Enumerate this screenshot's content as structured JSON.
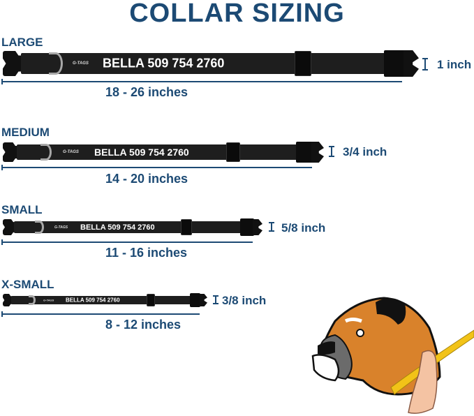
{
  "title": "COLLAR SIZING",
  "brand_tag": "G-TAGS",
  "sizes": [
    {
      "label": "LARGE",
      "name_text": "BELLA 509 754 2760",
      "range": "18 - 26 inches",
      "width": "1 inch"
    },
    {
      "label": "MEDIUM",
      "name_text": "BELLA 509 754 2760",
      "range": "14 - 20 inches",
      "width": "3/4 inch"
    },
    {
      "label": "SMALL",
      "name_text": "BELLA 509 754 2760",
      "range": "11 - 16 inches",
      "width": "5/8 inch"
    },
    {
      "label": "X-SMALL",
      "name_text": "BELLA 509 754 2760",
      "range": "8 - 12 inches",
      "width": "3/8 inch"
    }
  ],
  "colors": {
    "heading": "#1c4a74",
    "collar": "#1e1e1e",
    "ring": "#a8a8a8",
    "dog_fur": "#d9822b",
    "tape": "#f2c318"
  }
}
